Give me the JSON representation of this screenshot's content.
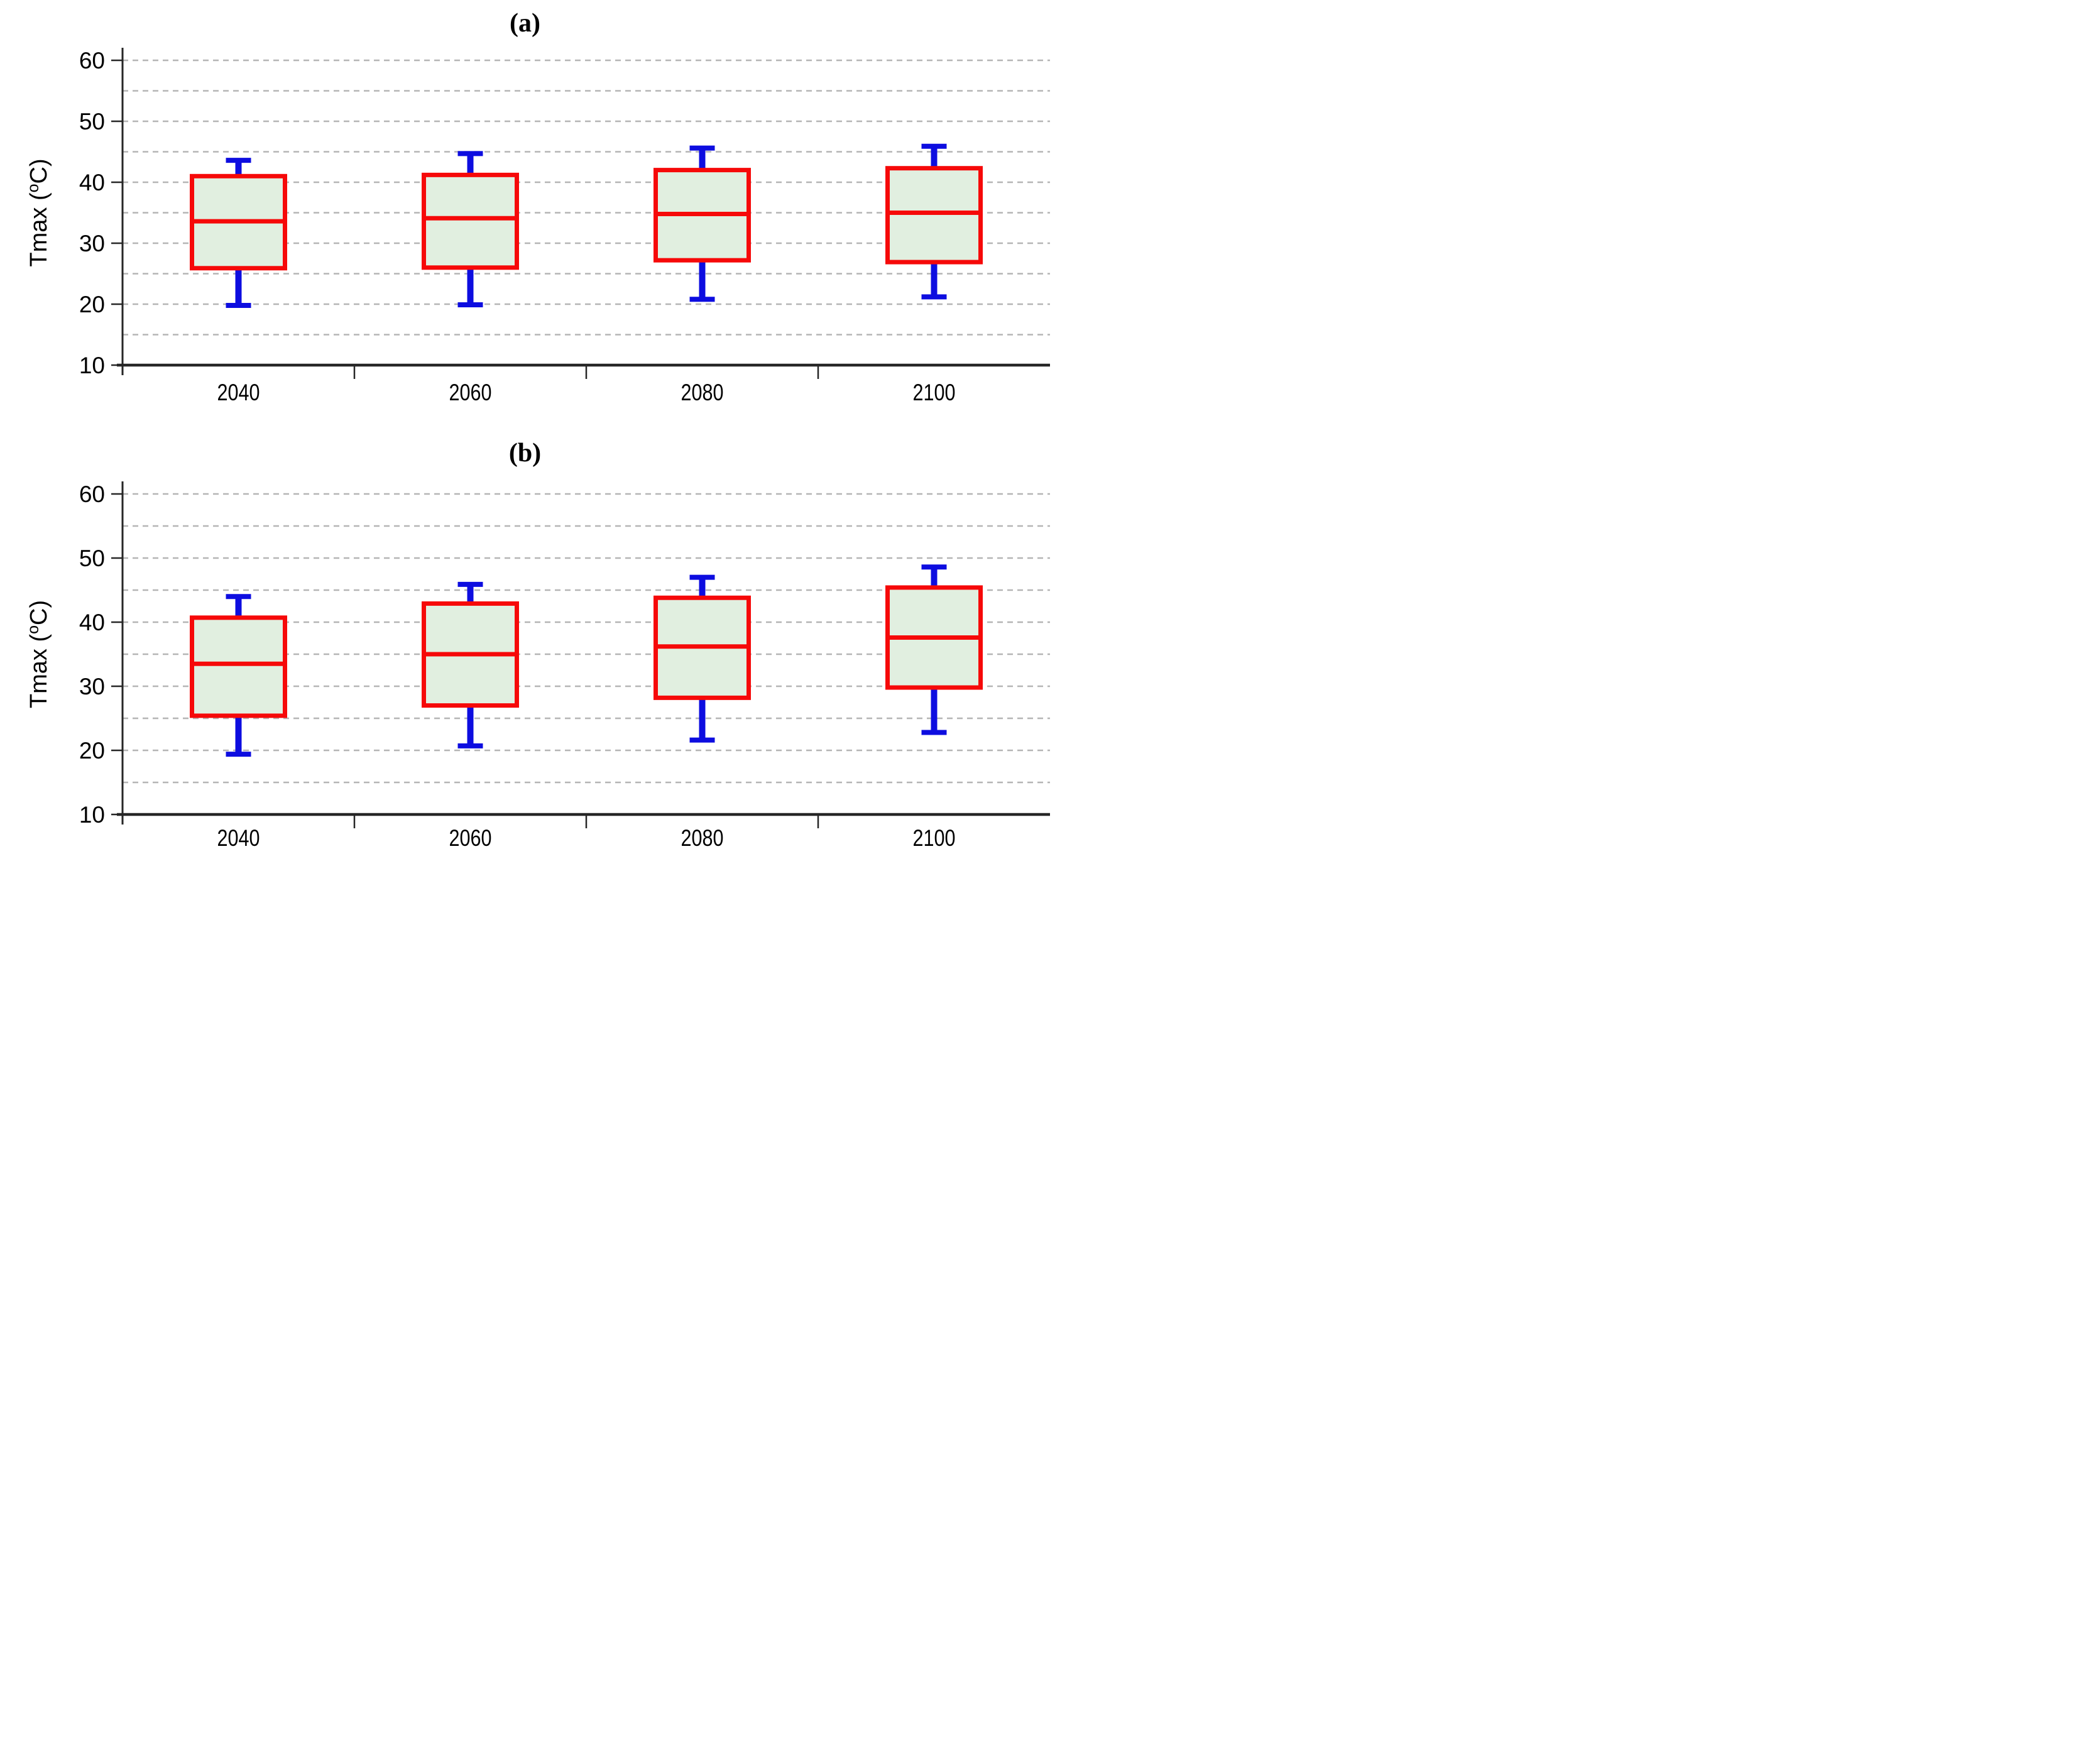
{
  "figure": {
    "background": "#ffffff",
    "panel_count": 2
  },
  "chart_data": [
    {
      "type": "box",
      "title": "(a)",
      "ylabel": "Tmax (oC)",
      "ylabel_parts": {
        "prefix": "Tmax (",
        "sup": "o",
        "suffix": "C)"
      },
      "xlabel": "",
      "ylim": [
        10,
        60
      ],
      "yticks": [
        60,
        50,
        40,
        30,
        20,
        10
      ],
      "grid": "dashed horizontal, every 5 units from 15 to 60",
      "legend": "none",
      "categories": [
        "2040",
        "2060",
        "2080",
        "2100"
      ],
      "series": [
        {
          "category": "2040",
          "min": 19.8,
          "q1": 25.9,
          "median": 33.6,
          "q3": 41.0,
          "max": 43.6
        },
        {
          "category": "2060",
          "min": 19.9,
          "q1": 26.0,
          "median": 34.1,
          "q3": 41.2,
          "max": 44.7
        },
        {
          "category": "2080",
          "min": 20.8,
          "q1": 27.2,
          "median": 34.8,
          "q3": 42.0,
          "max": 45.6
        },
        {
          "category": "2100",
          "min": 21.2,
          "q1": 26.9,
          "median": 35.0,
          "q3": 42.3,
          "max": 45.9
        }
      ]
    },
    {
      "type": "box",
      "title": "(b)",
      "ylabel": "Tmax (oC)",
      "ylabel_parts": {
        "prefix": "Tmax (",
        "sup": "o",
        "suffix": "C)"
      },
      "xlabel": "",
      "ylim": [
        10,
        60
      ],
      "yticks": [
        60,
        50,
        40,
        30,
        20,
        10
      ],
      "grid": "dashed horizontal, every 5 units from 15 to 60",
      "legend": "none",
      "categories": [
        "2040",
        "2060",
        "2080",
        "2100"
      ],
      "series": [
        {
          "category": "2040",
          "min": 19.4,
          "q1": 25.4,
          "median": 33.5,
          "q3": 40.7,
          "max": 44.0
        },
        {
          "category": "2060",
          "min": 20.7,
          "q1": 27.0,
          "median": 35.0,
          "q3": 42.9,
          "max": 45.9
        },
        {
          "category": "2080",
          "min": 21.6,
          "q1": 28.2,
          "median": 36.2,
          "q3": 43.8,
          "max": 47.0
        },
        {
          "category": "2100",
          "min": 22.8,
          "q1": 29.8,
          "median": 37.6,
          "q3": 45.4,
          "max": 48.6
        }
      ]
    }
  ],
  "colors": {
    "box_border": "#f60909",
    "box_fill": "#e1efe0",
    "median": "#f60909",
    "whisker": "#0d0de0",
    "gridline": "#b5b5b5",
    "axis": "#262626",
    "text": "#000000",
    "background": "#ffffff"
  }
}
